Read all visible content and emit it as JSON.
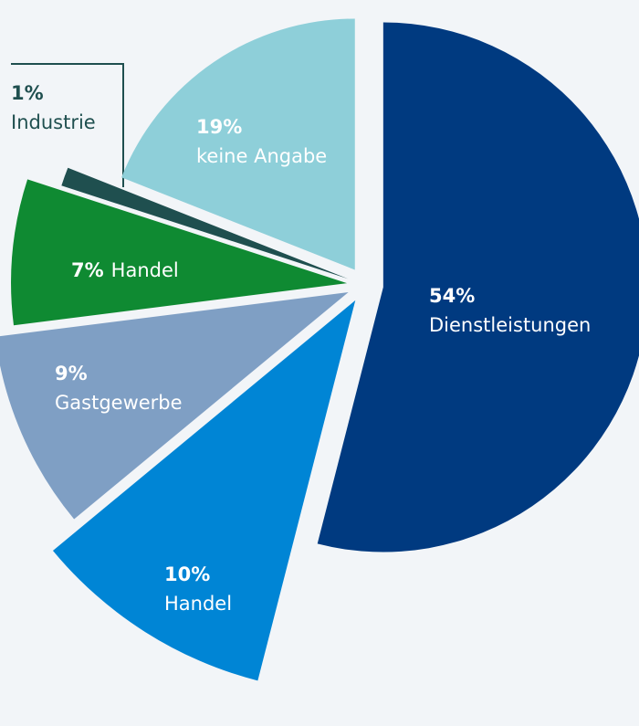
{
  "chart_data": {
    "type": "pie",
    "categories": [
      "Dienstleistungen",
      "Handel",
      "Gastgewerbe",
      "Handel",
      "Industrie",
      "keine Angabe"
    ],
    "values": [
      54,
      10,
      9,
      7,
      1,
      19
    ],
    "value_labels": [
      "54%",
      "10%",
      "9%",
      "7%",
      "1%",
      "19%"
    ],
    "colors": [
      "#003a80",
      "#0085d5",
      "#7f9fc4",
      "#0f8a32",
      "#1f4f4f",
      "#8ecfd9"
    ]
  }
}
